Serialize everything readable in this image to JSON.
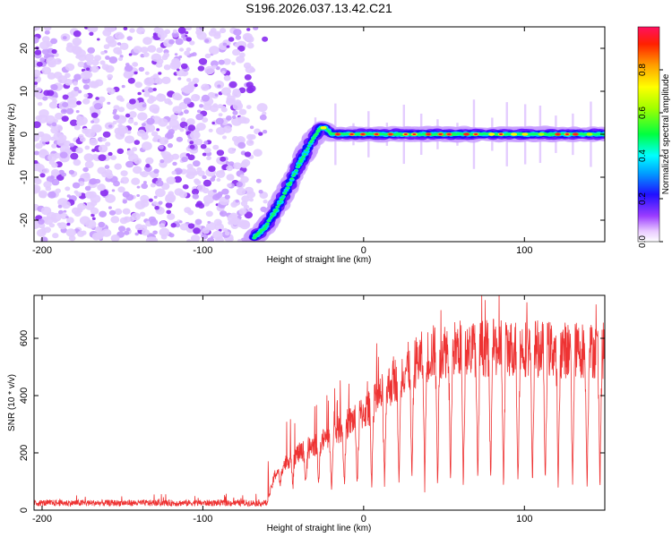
{
  "title": "S196.2026.037.13.42.C21",
  "chart_data": [
    {
      "type": "heatmap",
      "xlabel": "Height of straight line (km)",
      "ylabel": "Frequency (Hz)",
      "xlim": [
        -205,
        150
      ],
      "ylim": [
        -25,
        25
      ],
      "xticks": [
        -200,
        -100,
        0,
        100
      ],
      "yticks": [
        -20,
        -10,
        0,
        10,
        20
      ],
      "colorbar": {
        "label": "Normalized spectral amplitude",
        "range": [
          0,
          1
        ],
        "ticks": [
          0.0,
          0.2,
          0.4,
          0.6,
          0.8
        ]
      },
      "frequency_trace": {
        "x": [
          -68,
          -62,
          -55,
          -48,
          -40,
          -33,
          -27,
          -24,
          -20,
          -10,
          0,
          10,
          20,
          40,
          60,
          80,
          100,
          120,
          150
        ],
        "y": [
          -24,
          -22,
          -18,
          -13,
          -7,
          -2,
          1.5,
          1.5,
          0,
          0,
          0,
          0,
          0,
          0,
          0,
          0,
          0,
          0,
          0
        ]
      },
      "noise_region_xmax": -72
    },
    {
      "type": "line",
      "xlabel": "Height of straight line (km)",
      "ylabel": "SNR (10 * v/v)",
      "xlim": [
        -205,
        150
      ],
      "ylim": [
        0,
        750
      ],
      "xticks": [
        -200,
        -100,
        0,
        100
      ],
      "yticks": [
        0,
        200,
        400,
        600
      ],
      "color": "#ee3333",
      "envelope": {
        "x": [
          -205,
          -60,
          -55,
          -45,
          -35,
          -25,
          -15,
          -5,
          5,
          15,
          25,
          35,
          45,
          60,
          80,
          100,
          120,
          150
        ],
        "y": [
          25,
          25,
          130,
          190,
          220,
          250,
          290,
          330,
          370,
          440,
          500,
          540,
          570,
          580,
          580,
          580,
          575,
          570
        ]
      },
      "dips": [
        -52,
        -44,
        -36,
        -28,
        -20,
        -12,
        -4,
        5,
        13,
        22,
        30,
        38,
        46,
        54,
        62,
        71,
        79,
        87,
        96,
        105,
        113,
        121,
        130,
        139,
        147
      ]
    }
  ]
}
